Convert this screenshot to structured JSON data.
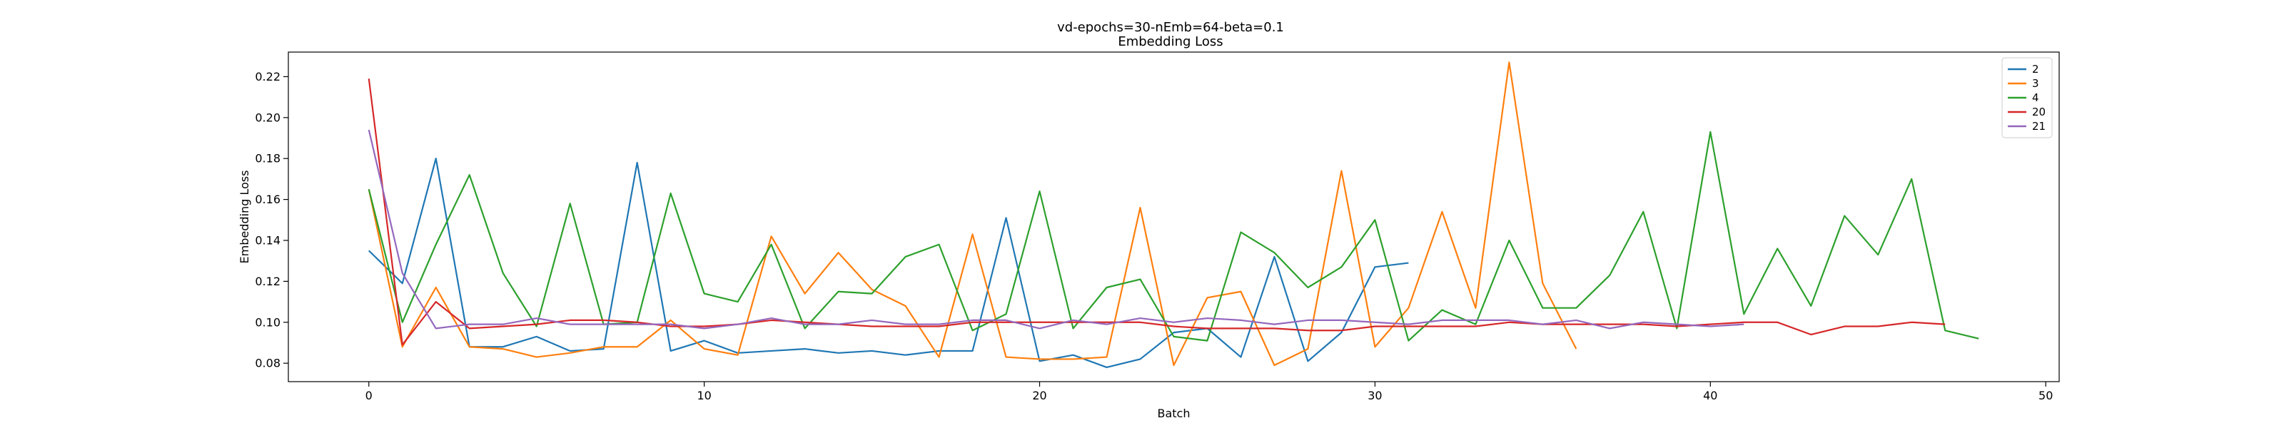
{
  "chart_data": {
    "type": "line",
    "title": "vd-epochs=30-nEmb=64-beta=0.1",
    "subtitle": "Embedding Loss",
    "xlabel": "Batch",
    "ylabel": "Embedding Loss",
    "xlim": [
      -2.4,
      50.4
    ],
    "ylim": [
      0.071,
      0.232
    ],
    "xticks": [
      "0",
      "10",
      "20",
      "30",
      "40",
      "50"
    ],
    "yticks": [
      "0.08",
      "0.10",
      "0.12",
      "0.14",
      "0.16",
      "0.18",
      "0.20",
      "0.22"
    ],
    "grid": false,
    "legend_position": "top-right",
    "series": [
      {
        "name": "2",
        "color": "#1f77b4",
        "values": [
          0.135,
          0.119,
          0.18,
          0.088,
          0.088,
          0.093,
          0.086,
          0.087,
          0.178,
          0.086,
          0.091,
          0.085,
          0.086,
          0.087,
          0.085,
          0.086,
          0.084,
          0.086,
          0.086,
          0.151,
          0.081,
          0.084,
          0.078,
          0.082,
          0.095,
          0.097,
          0.083,
          0.132,
          0.081,
          0.095,
          0.127,
          0.129
        ]
      },
      {
        "name": "3",
        "color": "#ff7f0e",
        "values": [
          0.165,
          0.088,
          0.117,
          0.088,
          0.087,
          0.083,
          0.085,
          0.088,
          0.088,
          0.101,
          0.087,
          0.084,
          0.142,
          0.114,
          0.134,
          0.116,
          0.108,
          0.083,
          0.143,
          0.083,
          0.082,
          0.082,
          0.083,
          0.156,
          0.079,
          0.112,
          0.115,
          0.079,
          0.087,
          0.174,
          0.088,
          0.107,
          0.154,
          0.107,
          0.227,
          0.119,
          0.087
        ]
      },
      {
        "name": "4",
        "color": "#2ca02c",
        "values": [
          0.165,
          0.1,
          0.138,
          0.172,
          0.124,
          0.098,
          0.158,
          0.099,
          0.1,
          0.163,
          0.114,
          0.11,
          0.138,
          0.097,
          0.115,
          0.114,
          0.132,
          0.138,
          0.096,
          0.104,
          0.164,
          0.097,
          0.117,
          0.121,
          0.093,
          0.091,
          0.144,
          0.134,
          0.117,
          0.127,
          0.15,
          0.091,
          0.106,
          0.099,
          0.14,
          0.107,
          0.107,
          0.123,
          0.154,
          0.097,
          0.193,
          0.104,
          0.136,
          0.108,
          0.152,
          0.133,
          0.17,
          0.096,
          0.092
        ]
      },
      {
        "name": "20",
        "color": "#d62728",
        "values": [
          0.219,
          0.089,
          0.11,
          0.097,
          0.098,
          0.099,
          0.101,
          0.101,
          0.1,
          0.098,
          0.098,
          0.099,
          0.101,
          0.1,
          0.099,
          0.098,
          0.098,
          0.098,
          0.1,
          0.1,
          0.1,
          0.1,
          0.1,
          0.1,
          0.098,
          0.097,
          0.097,
          0.097,
          0.096,
          0.096,
          0.098,
          0.098,
          0.098,
          0.098,
          0.1,
          0.099,
          0.099,
          0.099,
          0.099,
          0.098,
          0.099,
          0.1,
          0.1,
          0.094,
          0.098,
          0.098,
          0.1,
          0.099
        ]
      },
      {
        "name": "21",
        "color": "#9467bd",
        "values": [
          0.194,
          0.124,
          0.097,
          0.099,
          0.099,
          0.102,
          0.099,
          0.099,
          0.099,
          0.099,
          0.097,
          0.099,
          0.102,
          0.099,
          0.099,
          0.101,
          0.099,
          0.099,
          0.101,
          0.101,
          0.097,
          0.101,
          0.099,
          0.102,
          0.1,
          0.102,
          0.101,
          0.099,
          0.101,
          0.101,
          0.1,
          0.099,
          0.101,
          0.101,
          0.101,
          0.099,
          0.101,
          0.097,
          0.1,
          0.099,
          0.098,
          0.099
        ]
      }
    ]
  }
}
